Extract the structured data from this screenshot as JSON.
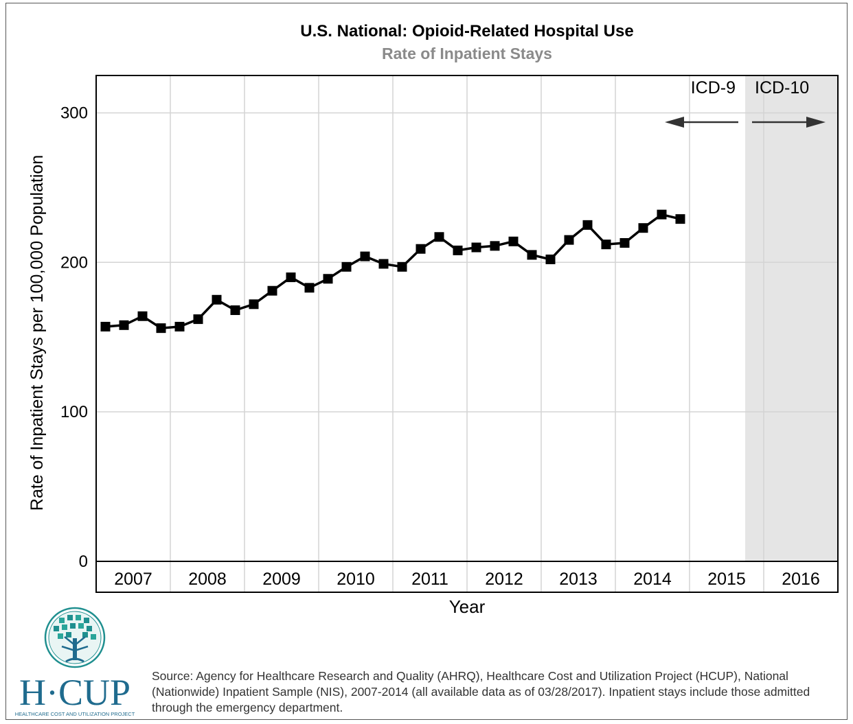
{
  "chart_data": {
    "type": "line",
    "title": "U.S. National: Opioid-Related Hospital Use",
    "subtitle": "Rate of Inpatient Stays",
    "xlabel": "Year",
    "ylabel": "Rate of Inpatient Stays per 100,000 Population",
    "ylim": [
      0,
      325
    ],
    "yticks": [
      0,
      100,
      200,
      300
    ],
    "grid": true,
    "x_range": [
      2007,
      2017
    ],
    "year_labels": [
      "2007",
      "2008",
      "2009",
      "2010",
      "2011",
      "2012",
      "2013",
      "2014",
      "2015",
      "2016"
    ],
    "series": [
      {
        "x": [
          "2007Q1",
          "2007Q2",
          "2007Q3",
          "2007Q4",
          "2008Q1",
          "2008Q2",
          "2008Q3",
          "2008Q4",
          "2009Q1",
          "2009Q2",
          "2009Q3",
          "2009Q4",
          "2010Q1",
          "2010Q2",
          "2010Q3",
          "2010Q4",
          "2011Q1",
          "2011Q2",
          "2011Q3",
          "2011Q4",
          "2012Q1",
          "2012Q2",
          "2012Q3",
          "2012Q4",
          "2013Q1",
          "2013Q2",
          "2013Q3",
          "2013Q4",
          "2014Q1",
          "2014Q2",
          "2014Q3",
          "2014Q4"
        ],
        "values": [
          157,
          158,
          164,
          156,
          157,
          162,
          175,
          168,
          172,
          181,
          190,
          183,
          189,
          197,
          204,
          199,
          197,
          209,
          217,
          208,
          210,
          211,
          214,
          205,
          202,
          215,
          225,
          212,
          213,
          223,
          232,
          229
        ],
        "color": "#000000"
      }
    ],
    "annotations": [
      {
        "text": "ICD-9",
        "arrow": "left"
      },
      {
        "text": "ICD-10",
        "arrow": "right"
      }
    ],
    "shaded_region": {
      "from": 2015.75,
      "to": 2017,
      "color": "#e5e5e5"
    }
  },
  "logo": {
    "text": "H·CUP",
    "tagline": "HEALTHCARE COST AND UTILIZATION PROJECT",
    "color": "#1f6b8e"
  },
  "source_note": "Source: Agency for Healthcare Research and Quality (AHRQ), Healthcare Cost and Utilization Project (HCUP), National (Nationwide) Inpatient Sample (NIS), 2007-2014 (all available data as of 03/28/2017). Inpatient stays include those admitted through the emergency department."
}
